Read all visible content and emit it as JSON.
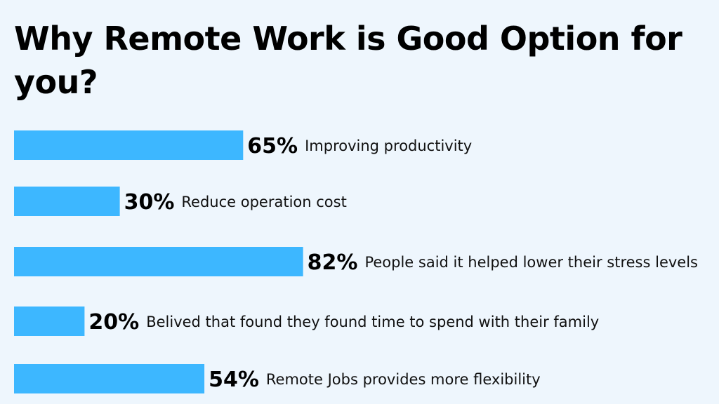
{
  "title": "Why Remote Work is Good Option for you?",
  "colors": {
    "background": "#eef6fd",
    "bar": "#3db7ff",
    "text": "#000000"
  },
  "chart_data": {
    "type": "bar",
    "orientation": "horizontal",
    "title": "Why Remote Work is Good Option for you?",
    "xlabel": "",
    "ylabel": "",
    "xlim": [
      0,
      100
    ],
    "grid": false,
    "legend": "none",
    "categories": [
      "Improving productivity",
      "Reduce operation cost",
      "People said it helped lower their stress levels",
      "Belived that found they found time to spend with their family",
      "Remote Jobs provides more flexibility"
    ],
    "values": [
      65,
      30,
      82,
      20,
      54
    ],
    "value_labels": [
      "65%",
      "30%",
      "82%",
      "20%",
      "54%"
    ]
  }
}
